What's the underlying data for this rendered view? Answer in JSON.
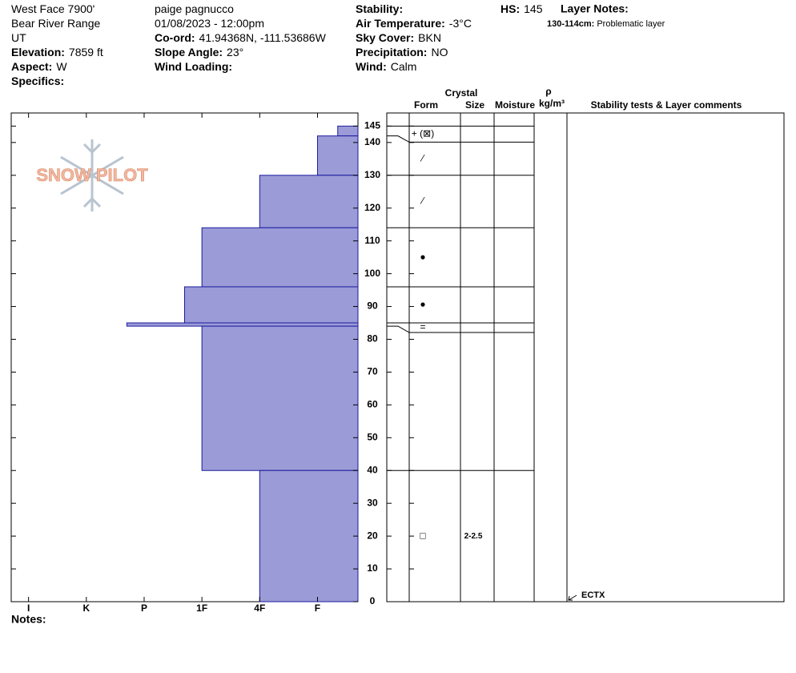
{
  "header": {
    "col1": [
      {
        "text": "West Face 7900'"
      },
      {
        "text": "Bear River Range"
      },
      {
        "text": "UT"
      },
      {
        "label": "Elevation:",
        "value": "7859 ft"
      },
      {
        "label": "Aspect:",
        "value": "W"
      },
      {
        "label": "Specifics:"
      }
    ],
    "col2": [
      {
        "text": "paige pagnucco"
      },
      {
        "text": "01/08/2023 - 12:00pm"
      },
      {
        "label": "Co-ord:",
        "value": "41.94368N, -111.53686W"
      },
      {
        "label": "Slope Angle:",
        "value": "23°"
      },
      {
        "label": "Wind Loading:"
      }
    ],
    "col3": [
      {
        "label": "Stability:"
      },
      {
        "label": "Air Temperature:",
        "value": "-3°C"
      },
      {
        "label": "Sky Cover:",
        "value": "BKN"
      },
      {
        "label": "Precipitation:",
        "value": "NO"
      },
      {
        "label": "Wind:",
        "value": "Calm"
      }
    ],
    "hs": {
      "label": "HS:",
      "value": "145"
    },
    "layer_notes_title": "Layer Notes:",
    "layer_notes": [
      {
        "label": "130-114cm:",
        "value": "Problematic layer"
      }
    ],
    "logo": "SNOW PILOT",
    "notes": "Notes:"
  },
  "table_header": {
    "crystal": "Crystal",
    "form": "Form",
    "size": "Size",
    "moisture": "Moisture",
    "rho": "ρ",
    "density_unit": "kg/m³",
    "comments": "Stability tests & Layer comments"
  },
  "chart_data": {
    "type": "hardness_profile",
    "ylim": [
      0,
      149
    ],
    "yticks": [
      0,
      10,
      20,
      30,
      40,
      50,
      60,
      70,
      80,
      90,
      100,
      110,
      120,
      130,
      140,
      145
    ],
    "xlim": [
      6.3,
      0.3
    ],
    "xticks": [
      {
        "value": 6,
        "label": "I"
      },
      {
        "value": 5,
        "label": "K"
      },
      {
        "value": 4,
        "label": "P"
      },
      {
        "value": 3,
        "label": "1F"
      },
      {
        "value": 2,
        "label": "4F"
      },
      {
        "value": 1,
        "label": "F"
      }
    ],
    "color": "#9b9bd7",
    "edge_color": "#1c1ca0",
    "layers": [
      {
        "top": 145,
        "bottom": 142,
        "hardness": 0.65,
        "form": "+ (⊠)",
        "size": null
      },
      {
        "top": 142,
        "bottom": 130,
        "hardness": 1,
        "form": "⁄",
        "size": null
      },
      {
        "top": 130,
        "bottom": 114,
        "hardness": 2,
        "form": "⁄",
        "size": null
      },
      {
        "top": 114,
        "bottom": 96,
        "hardness": 3,
        "form": "●",
        "size": null
      },
      {
        "top": 96,
        "bottom": 85,
        "hardness": 3.3,
        "form": "●",
        "size": null
      },
      {
        "top": 85,
        "bottom": 84,
        "hardness": 4.3,
        "form": "=",
        "size": null
      },
      {
        "top": 84,
        "bottom": 40,
        "hardness": 3,
        "form": null,
        "size": null
      },
      {
        "top": 40,
        "bottom": 0,
        "hardness": 2,
        "form": "□",
        "size": "2-2.5"
      }
    ],
    "stability_tests": [
      {
        "height": 0,
        "label": "ECTX"
      }
    ]
  }
}
